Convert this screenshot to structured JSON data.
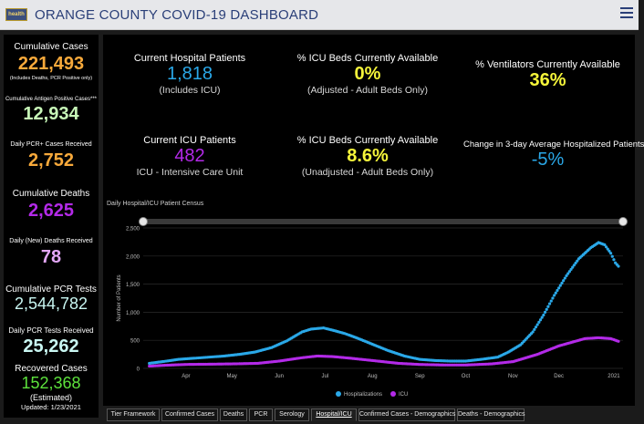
{
  "header": {
    "logo_text": "health",
    "title": "ORANGE COUNTY COVID-19 DASHBOARD"
  },
  "sidebar": {
    "cumulative_cases_label": "Cumulative Cases",
    "cumulative_cases_value": "221,493",
    "cumulative_cases_note": "(Includes Deaths, PCR Positive only)",
    "antigen_label": "Cumulative Antigen Positive Cases***",
    "antigen_value": "12,934",
    "daily_pcr_cases_label": "Daily PCR+ Cases Received",
    "daily_pcr_cases_value": "2,752",
    "cumulative_deaths_label": "Cumulative Deaths",
    "cumulative_deaths_value": "2,625",
    "daily_deaths_label": "Daily (New) Deaths Received",
    "daily_deaths_value": "78",
    "pcr_tests_label": "Cumulative PCR Tests",
    "pcr_tests_value": "2,544,782",
    "daily_pcr_tests_label": "Daily PCR Tests Received",
    "daily_pcr_tests_value": "25,262",
    "recovered_label": "Recovered Cases",
    "recovered_value": "152,368",
    "recovered_note": "(Estimated)",
    "updated": "Updated: 1/23/2021"
  },
  "kpis": {
    "hospital_label": "Current Hospital Patients",
    "hospital_value": "1,818",
    "hospital_sub": "(Includes ICU)",
    "icu_avail_label": "% ICU Beds Currently Available",
    "icu_avail_value": "0%",
    "icu_avail_sub": "(Adjusted - Adult Beds Only)",
    "vent_label": "% Ventilators Currently Available",
    "vent_value": "36%",
    "icu_label": "Current ICU Patients",
    "icu_value": "482",
    "icu_sub": "ICU - Intensive Care Unit",
    "icu_unadj_label": "% ICU Beds Currently Available",
    "icu_unadj_value": "8.6%",
    "icu_unadj_sub": "(Unadjusted - Adult Beds Only)",
    "change_label": "Change in 3-day Average Hospitalized Patients",
    "change_value": "-5%"
  },
  "colors": {
    "orange": "#f7a93b",
    "light_green": "#c8f7b8",
    "purple": "#b32ae8",
    "light_purple": "#e3a7f7",
    "light_cyan": "#c9f7f2",
    "green": "#5de23c",
    "blue": "#2aa8e8",
    "yellow": "#f5f53a",
    "hosp_series": "#2aa8e8",
    "icu_series": "#b32ae8"
  },
  "chart_data": {
    "type": "scatter",
    "title": "Daily Hospital/ICU Patient Census",
    "ylabel": "Number of Patients",
    "xlabel": "",
    "ylim": [
      0,
      2500
    ],
    "yticks": [
      "0",
      "500",
      "1,000",
      "1,500",
      "2,000",
      "2,500"
    ],
    "months": [
      "Apr",
      "May",
      "Jun",
      "Jul",
      "Aug",
      "Sep",
      "Oct",
      "Nov",
      "Dec",
      "2021"
    ],
    "legend_position": "bottom-center",
    "grid": true,
    "series": [
      {
        "name": "Hospitalizations",
        "points": [
          [
            "2020-03-22",
            90
          ],
          [
            "2020-04-01",
            125
          ],
          [
            "2020-04-10",
            160
          ],
          [
            "2020-04-20",
            180
          ],
          [
            "2020-04-30",
            200
          ],
          [
            "2020-05-10",
            220
          ],
          [
            "2020-05-20",
            250
          ],
          [
            "2020-05-30",
            290
          ],
          [
            "2020-06-10",
            370
          ],
          [
            "2020-06-20",
            490
          ],
          [
            "2020-06-30",
            650
          ],
          [
            "2020-07-06",
            700
          ],
          [
            "2020-07-14",
            720
          ],
          [
            "2020-07-20",
            680
          ],
          [
            "2020-07-28",
            620
          ],
          [
            "2020-08-05",
            540
          ],
          [
            "2020-08-15",
            430
          ],
          [
            "2020-08-25",
            320
          ],
          [
            "2020-09-05",
            220
          ],
          [
            "2020-09-15",
            160
          ],
          [
            "2020-09-25",
            140
          ],
          [
            "2020-10-05",
            130
          ],
          [
            "2020-10-15",
            130
          ],
          [
            "2020-10-25",
            160
          ],
          [
            "2020-11-05",
            200
          ],
          [
            "2020-11-12",
            290
          ],
          [
            "2020-11-20",
            420
          ],
          [
            "2020-11-28",
            650
          ],
          [
            "2020-12-05",
            950
          ],
          [
            "2020-12-12",
            1300
          ],
          [
            "2020-12-20",
            1650
          ],
          [
            "2020-12-28",
            1950
          ],
          [
            "2021-01-05",
            2150
          ],
          [
            "2021-01-10",
            2240
          ],
          [
            "2021-01-14",
            2200
          ],
          [
            "2021-01-18",
            2050
          ],
          [
            "2021-01-21",
            1880
          ],
          [
            "2021-01-23",
            1818
          ]
        ]
      },
      {
        "name": "ICU",
        "points": [
          [
            "2020-03-22",
            40
          ],
          [
            "2020-04-01",
            55
          ],
          [
            "2020-04-15",
            70
          ],
          [
            "2020-05-01",
            75
          ],
          [
            "2020-05-15",
            80
          ],
          [
            "2020-06-01",
            90
          ],
          [
            "2020-06-15",
            130
          ],
          [
            "2020-06-30",
            190
          ],
          [
            "2020-07-10",
            220
          ],
          [
            "2020-07-20",
            210
          ],
          [
            "2020-08-01",
            180
          ],
          [
            "2020-08-15",
            140
          ],
          [
            "2020-09-01",
            90
          ],
          [
            "2020-09-15",
            70
          ],
          [
            "2020-10-01",
            60
          ],
          [
            "2020-10-15",
            60
          ],
          [
            "2020-11-01",
            80
          ],
          [
            "2020-11-15",
            120
          ],
          [
            "2020-12-01",
            250
          ],
          [
            "2020-12-15",
            400
          ],
          [
            "2021-01-01",
            530
          ],
          [
            "2021-01-10",
            545
          ],
          [
            "2021-01-18",
            530
          ],
          [
            "2021-01-23",
            482
          ]
        ]
      }
    ]
  },
  "tabs": [
    "Tier Framework",
    "Confirmed Cases",
    "Deaths",
    "PCR",
    "Serology",
    "Hospital/ICU",
    "Confirmed Cases - Demographics",
    "Deaths - Demographics"
  ]
}
